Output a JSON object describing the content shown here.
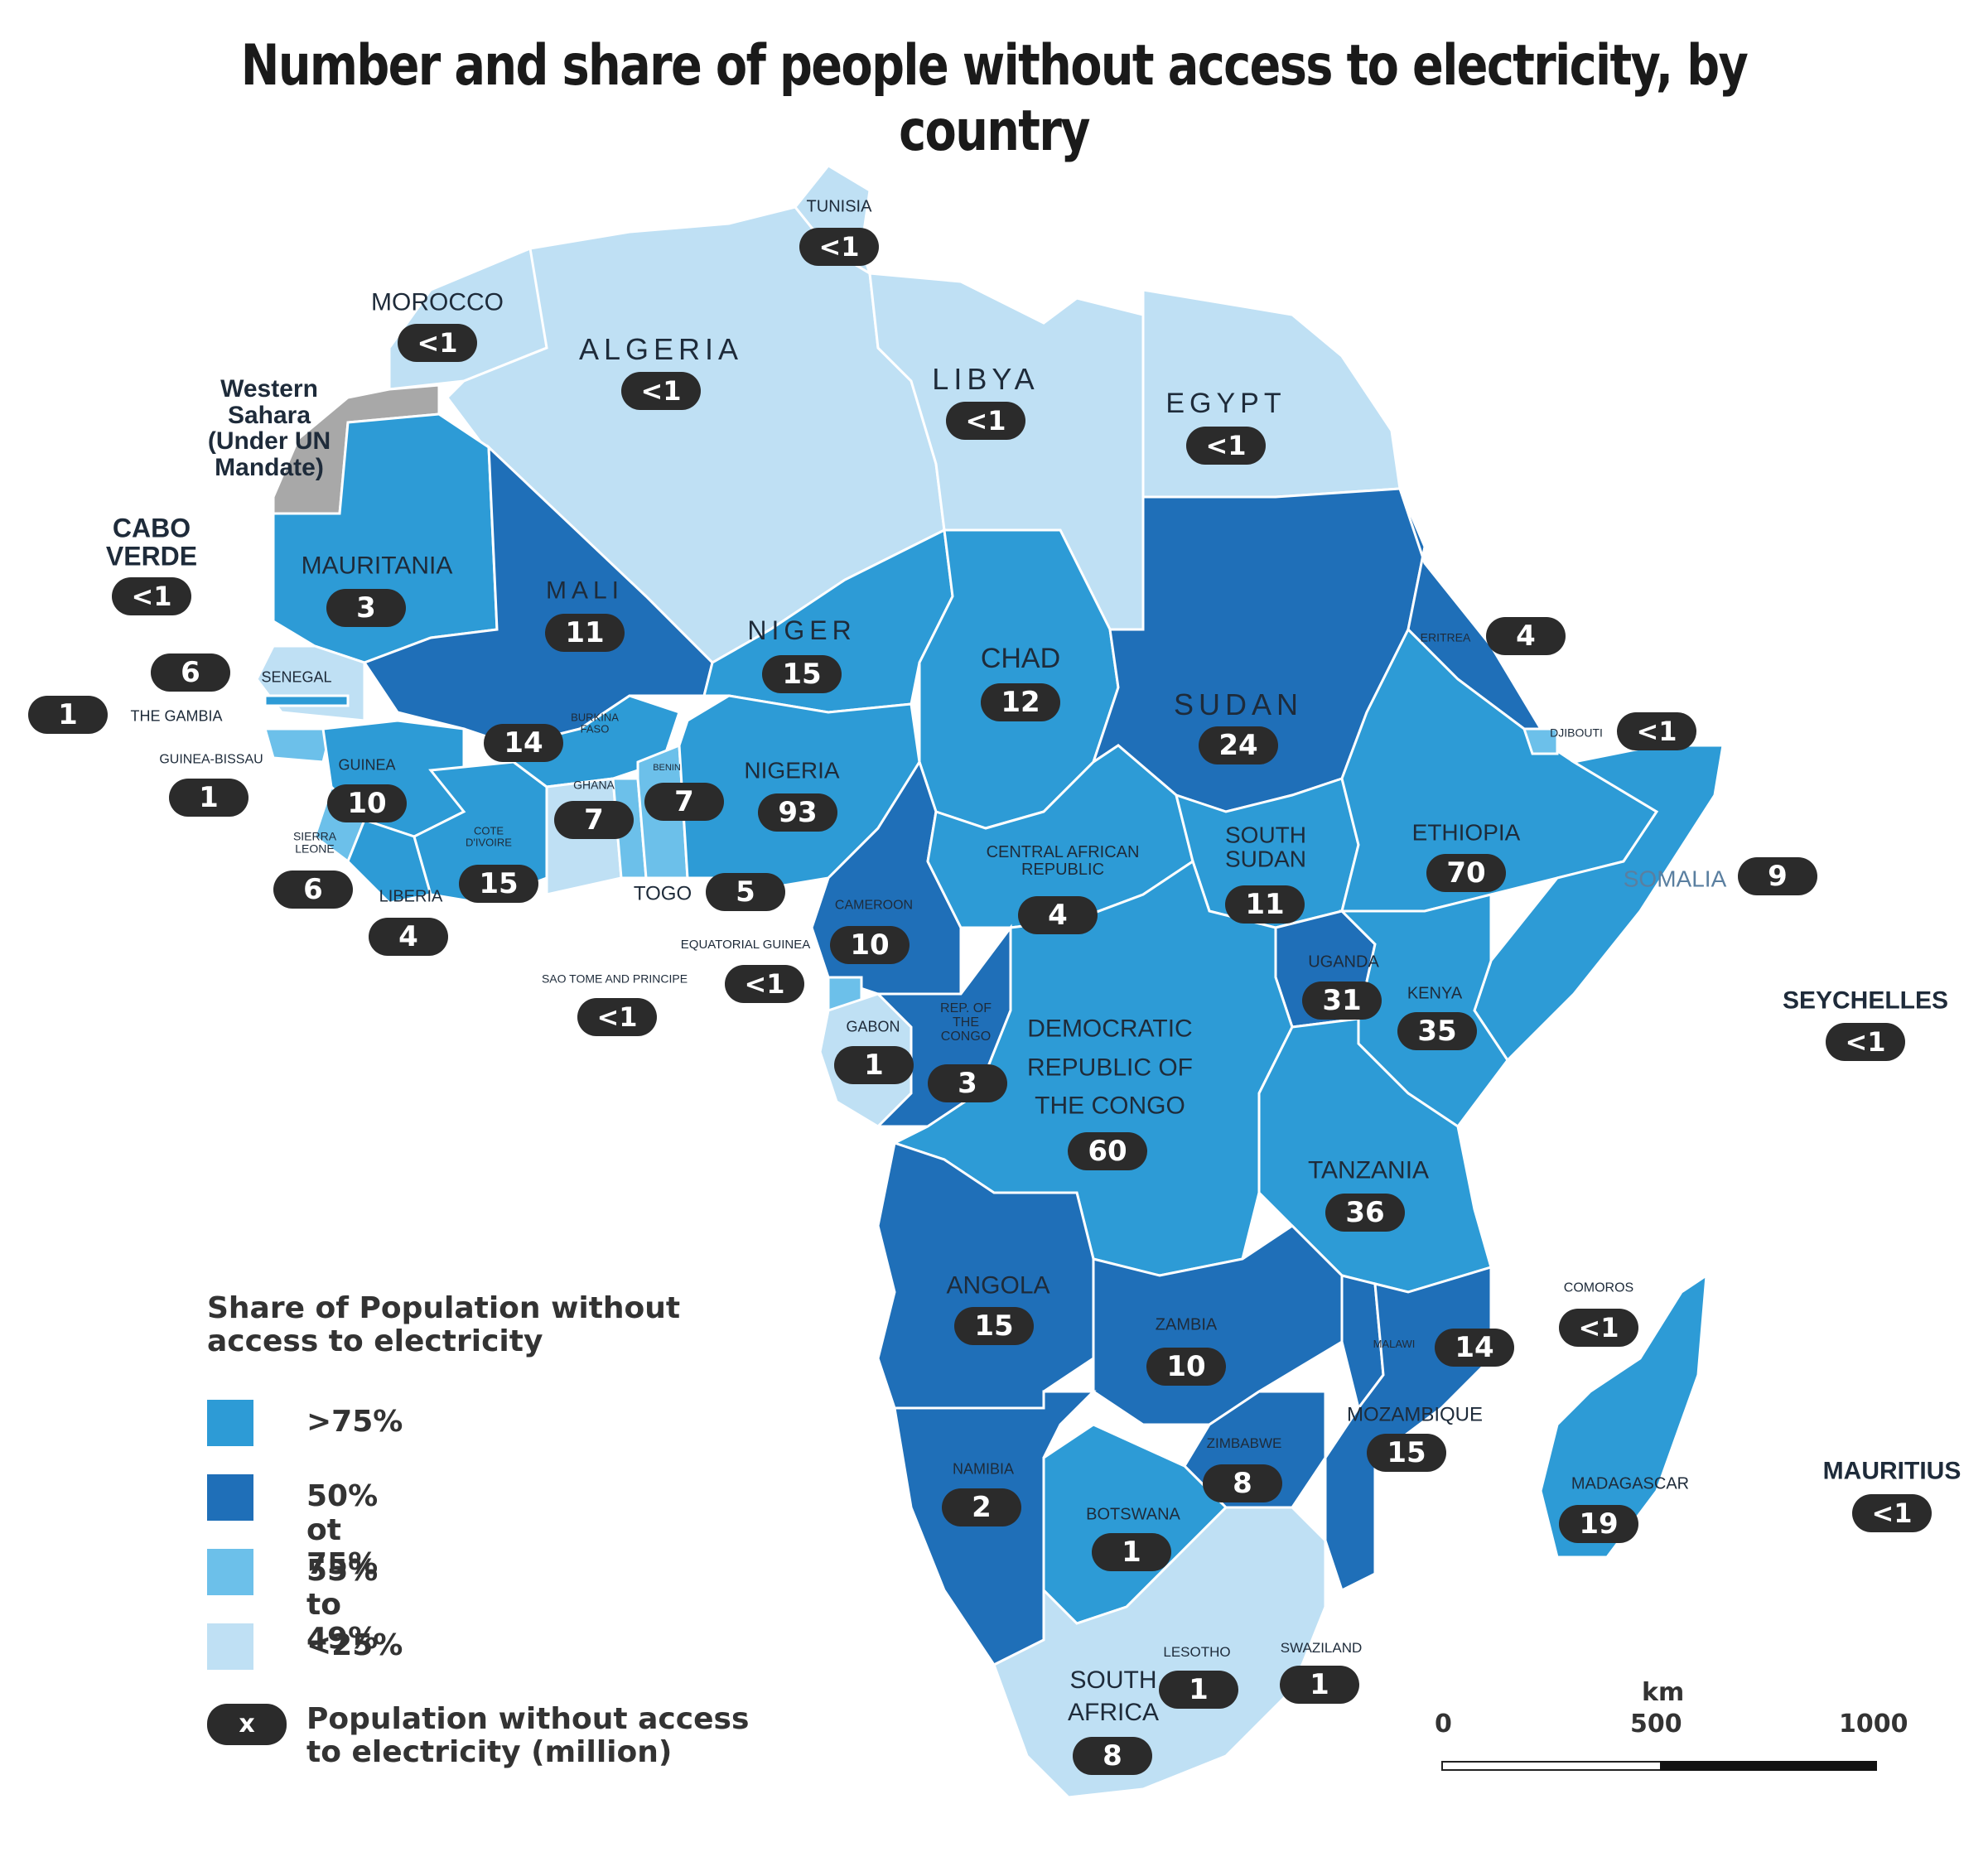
{
  "title": "Number and share of people without access to electricity, by country",
  "colors": {
    "gt75": "#2d9bd6",
    "50to75": "#1f6fb8",
    "25to49": "#6cc0ea",
    "lt25": "#bfe0f4",
    "disputed": "#a8a8a8",
    "pill": "#2b2b2b"
  },
  "legend": {
    "title": "Share of Population without access to electricity",
    "items": [
      {
        "label": ">75%",
        "color": "#2d9bd6"
      },
      {
        "label": "50% ot 75%",
        "color": "#1f6fb8"
      },
      {
        "label": "55% to 49%",
        "color": "#6cc0ea"
      },
      {
        "label": "<25%",
        "color": "#bfe0f4"
      }
    ],
    "pill_symbol": "x",
    "pill_label": "Population without access to electricity (million)"
  },
  "scale": {
    "unit": "km",
    "ticks": [
      "0",
      "500",
      "1000"
    ]
  },
  "countries": [
    {
      "name": "TUNISIA",
      "value": "<1"
    },
    {
      "name": "MOROCCO",
      "value": "<1"
    },
    {
      "name": "ALGERIA",
      "value": "<1"
    },
    {
      "name": "LIBYA",
      "value": "<1"
    },
    {
      "name": "EGYPT",
      "value": "<1"
    },
    {
      "name": "Western Sahara (Under UN Mandate)",
      "value": ""
    },
    {
      "name": "CABO VERDE",
      "value": "<1"
    },
    {
      "name": "MAURITANIA",
      "value": "3"
    },
    {
      "name": "MALI",
      "value": "11"
    },
    {
      "name": "NIGER",
      "value": "15"
    },
    {
      "name": "CHAD",
      "value": "12"
    },
    {
      "name": "SUDAN",
      "value": "24"
    },
    {
      "name": "ERITREA",
      "value": "4"
    },
    {
      "name": "DJIBOUTI",
      "value": "<1"
    },
    {
      "name": "SENEGAL",
      "value": "6"
    },
    {
      "name": "THE GAMBIA",
      "value": "1"
    },
    {
      "name": "GUINEA-BISSAU",
      "value": "1"
    },
    {
      "name": "GUINEA",
      "value": "10"
    },
    {
      "name": "BURKINA FASO",
      "value": "14"
    },
    {
      "name": "GHANA",
      "value": "7"
    },
    {
      "name": "BENIN",
      "value": "7"
    },
    {
      "name": "NIGERIA",
      "value": "93"
    },
    {
      "name": "SIERRA LEONE",
      "value": "6"
    },
    {
      "name": "COTE D'IVOIRE",
      "value": "15"
    },
    {
      "name": "LIBERIA",
      "value": "4"
    },
    {
      "name": "TOGO",
      "value": "5"
    },
    {
      "name": "CAMEROON",
      "value": "10"
    },
    {
      "name": "EQUATORIAL GUINEA",
      "value": "<1"
    },
    {
      "name": "SAO TOME AND PRINCIPE",
      "value": "<1"
    },
    {
      "name": "CENTRAL AFRICAN REPUBLIC",
      "value": "4"
    },
    {
      "name": "SOUTH SUDAN",
      "value": "11"
    },
    {
      "name": "ETHIOPIA",
      "value": "70"
    },
    {
      "name": "SOMALIA",
      "value": "9"
    },
    {
      "name": "UGANDA",
      "value": "31"
    },
    {
      "name": "KENYA",
      "value": "35"
    },
    {
      "name": "GABON",
      "value": "1"
    },
    {
      "name": "REP. OF THE CONGO",
      "value": "3"
    },
    {
      "name": "DEMOCRATIC REPUBLIC OF THE CONGO",
      "value": "60"
    },
    {
      "name": "SEYCHELLES",
      "value": "<1"
    },
    {
      "name": "TANZANIA",
      "value": "36"
    },
    {
      "name": "ANGOLA",
      "value": "15"
    },
    {
      "name": "ZAMBIA",
      "value": "10"
    },
    {
      "name": "MALAWI",
      "value": "14"
    },
    {
      "name": "COMOROS",
      "value": "<1"
    },
    {
      "name": "MOZAMBIQUE",
      "value": "15"
    },
    {
      "name": "ZIMBABWE",
      "value": "8"
    },
    {
      "name": "NAMIBIA",
      "value": "2"
    },
    {
      "name": "BOTSWANA",
      "value": "1"
    },
    {
      "name": "MADAGASCAR",
      "value": "19"
    },
    {
      "name": "MAURITIUS",
      "value": "<1"
    },
    {
      "name": "LESOTHO",
      "value": "1"
    },
    {
      "name": "SWAZILAND",
      "value": "1"
    },
    {
      "name": "SOUTH AFRICA",
      "value": "8"
    }
  ]
}
